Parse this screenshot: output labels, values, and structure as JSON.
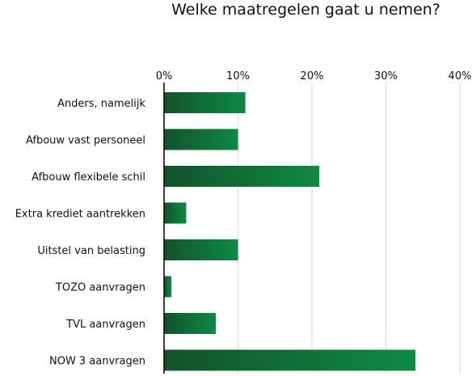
{
  "chart_data": {
    "type": "bar",
    "orientation": "horizontal",
    "title": "Welke maatregelen gaat u nemen?",
    "xlabel": "",
    "ylabel": "",
    "categories": [
      "Anders, namelijk",
      "Afbouw vast personeel",
      "Afbouw flexibele schil",
      "Extra krediet aantrekken",
      "Uitstel van belasting",
      "TOZO aanvragen",
      "TVL aanvragen",
      "NOW 3 aanvragen"
    ],
    "values": [
      11,
      10,
      21,
      3,
      10,
      1,
      7,
      34
    ],
    "value_unit": "%",
    "xlim": [
      0,
      40
    ],
    "xticks": [
      0,
      10,
      20,
      30,
      40
    ],
    "xtick_labels": [
      "0%",
      "10%",
      "20%",
      "30%",
      "40%"
    ],
    "axis_position": "top",
    "grid": true,
    "legend": "none",
    "colors": {
      "bar_dark": "#14522b",
      "bar_light": "#0d8a44",
      "grid": "#d9d9d9",
      "axis": "#000000"
    }
  }
}
